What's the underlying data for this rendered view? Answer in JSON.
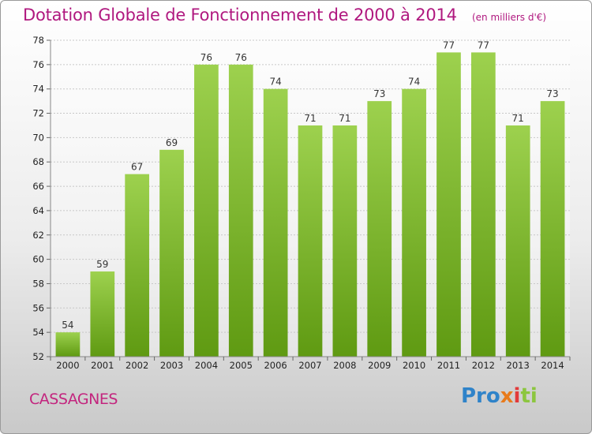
{
  "chart_data": {
    "type": "bar",
    "title": "Dotation Globale de Fonctionnement de 2000 à 2014",
    "subtitle": "(en milliers d'€)",
    "xlabel": "",
    "ylabel": "",
    "categories": [
      "2000",
      "2001",
      "2002",
      "2003",
      "2004",
      "2005",
      "2006",
      "2007",
      "2008",
      "2009",
      "2010",
      "2011",
      "2012",
      "2013",
      "2014"
    ],
    "values": [
      54,
      59,
      67,
      69,
      76,
      76,
      74,
      71,
      71,
      73,
      74,
      77,
      77,
      71,
      73
    ],
    "ylim": [
      52,
      78
    ],
    "yticks": [
      52,
      54,
      56,
      58,
      60,
      62,
      64,
      66,
      68,
      70,
      72,
      74,
      76,
      78
    ],
    "grid": true,
    "legend": "none",
    "colors": {
      "bar_light": "#9dd14e",
      "bar_dark": "#5f9a12",
      "title": "#b0187f"
    }
  },
  "footer": {
    "commune": "CASSAGNES",
    "logo": {
      "p1": "Pro",
      "p2": "x",
      "p3": "i",
      "p4": "ti"
    }
  }
}
